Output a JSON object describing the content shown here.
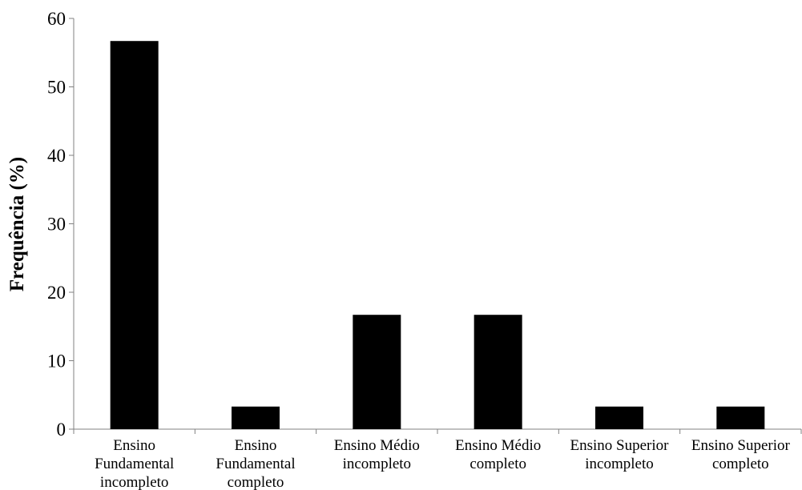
{
  "chart_data": {
    "type": "bar",
    "title": "",
    "xlabel": "",
    "ylabel": "Frequência (%)",
    "ylim": [
      0,
      60
    ],
    "yticks": [
      0,
      10,
      20,
      30,
      40,
      50,
      60
    ],
    "grid": false,
    "legend": "none",
    "categories": [
      [
        "Ensino",
        "Fundamental",
        "incompleto"
      ],
      [
        "Ensino",
        "Fundamental",
        "completo"
      ],
      [
        "Ensino Médio",
        "incompleto"
      ],
      [
        "Ensino Médio",
        "completo"
      ],
      [
        "Ensino Superior",
        "incompleto"
      ],
      [
        "Ensino Superior",
        "completo"
      ]
    ],
    "values": [
      56.7,
      3.3,
      16.7,
      16.7,
      3.3,
      3.3
    ],
    "colors": {
      "bar": "#000000",
      "axis": "#808080",
      "text": "#000000"
    }
  }
}
